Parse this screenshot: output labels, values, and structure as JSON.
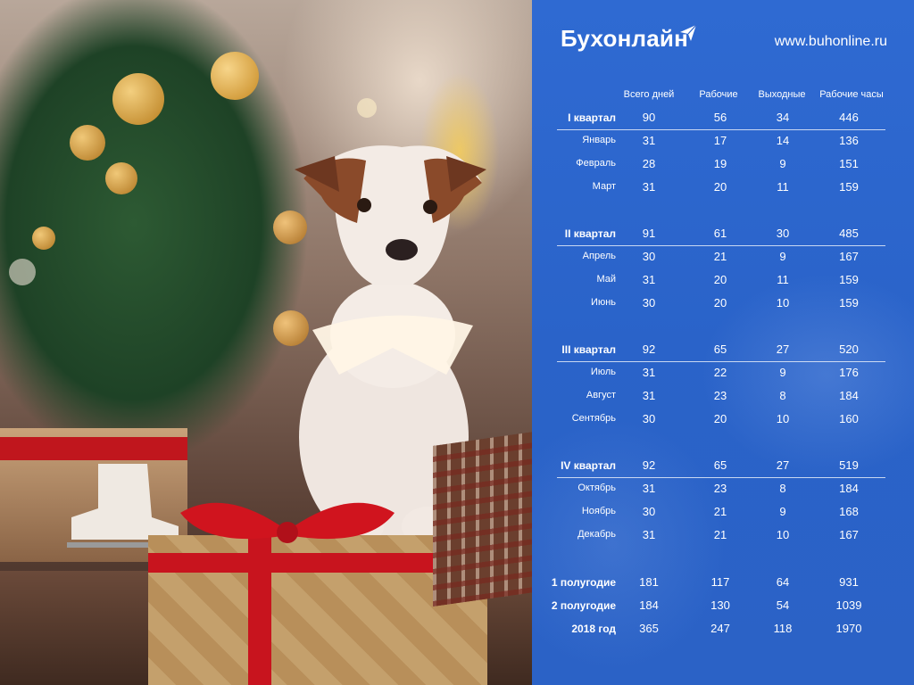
{
  "brand": {
    "name": "Бухонлайн",
    "site": "www.buhonline.ru"
  },
  "headers": [
    "Всего дней",
    "Рабочие",
    "Выходные",
    "Рабочие часы"
  ],
  "rows": [
    {
      "label": "I квартал",
      "kind": "quarter",
      "values": [
        "90",
        "56",
        "34",
        "446"
      ]
    },
    {
      "label": "Январь",
      "kind": "month",
      "values": [
        "31",
        "17",
        "14",
        "136"
      ]
    },
    {
      "label": "Февраль",
      "kind": "month",
      "values": [
        "28",
        "19",
        "9",
        "151"
      ]
    },
    {
      "label": "Март",
      "kind": "month",
      "values": [
        "31",
        "20",
        "11",
        "159"
      ]
    },
    {
      "label": "II квартал",
      "kind": "quarter",
      "values": [
        "91",
        "61",
        "30",
        "485"
      ]
    },
    {
      "label": "Апрель",
      "kind": "month",
      "values": [
        "30",
        "21",
        "9",
        "167"
      ]
    },
    {
      "label": "Май",
      "kind": "month",
      "values": [
        "31",
        "20",
        "11",
        "159"
      ]
    },
    {
      "label": "Июнь",
      "kind": "month",
      "values": [
        "30",
        "20",
        "10",
        "159"
      ]
    },
    {
      "label": "III квартал",
      "kind": "quarter",
      "values": [
        "92",
        "65",
        "27",
        "520"
      ]
    },
    {
      "label": "Июль",
      "kind": "month",
      "values": [
        "31",
        "22",
        "9",
        "176"
      ]
    },
    {
      "label": "Август",
      "kind": "month",
      "values": [
        "31",
        "23",
        "8",
        "184"
      ]
    },
    {
      "label": "Сентябрь",
      "kind": "month",
      "values": [
        "30",
        "20",
        "10",
        "160"
      ]
    },
    {
      "label": "IV квартал",
      "kind": "quarter",
      "values": [
        "92",
        "65",
        "27",
        "519"
      ]
    },
    {
      "label": "Октябрь",
      "kind": "month",
      "values": [
        "31",
        "23",
        "8",
        "184"
      ]
    },
    {
      "label": "Ноябрь",
      "kind": "month",
      "values": [
        "30",
        "21",
        "9",
        "168"
      ]
    },
    {
      "label": "Декабрь",
      "kind": "month",
      "values": [
        "31",
        "21",
        "10",
        "167"
      ]
    },
    {
      "label": "1 полугодие",
      "kind": "summary",
      "values": [
        "181",
        "117",
        "64",
        "931"
      ]
    },
    {
      "label": "2 полугодие",
      "kind": "summary",
      "values": [
        "184",
        "130",
        "54",
        "1039"
      ]
    },
    {
      "label": "2018 год",
      "kind": "summary",
      "values": [
        "365",
        "247",
        "118",
        "1970"
      ]
    }
  ],
  "colors": {
    "panel": "#2b63c9",
    "text": "#ffffff",
    "ribbon": "#c8141e"
  }
}
